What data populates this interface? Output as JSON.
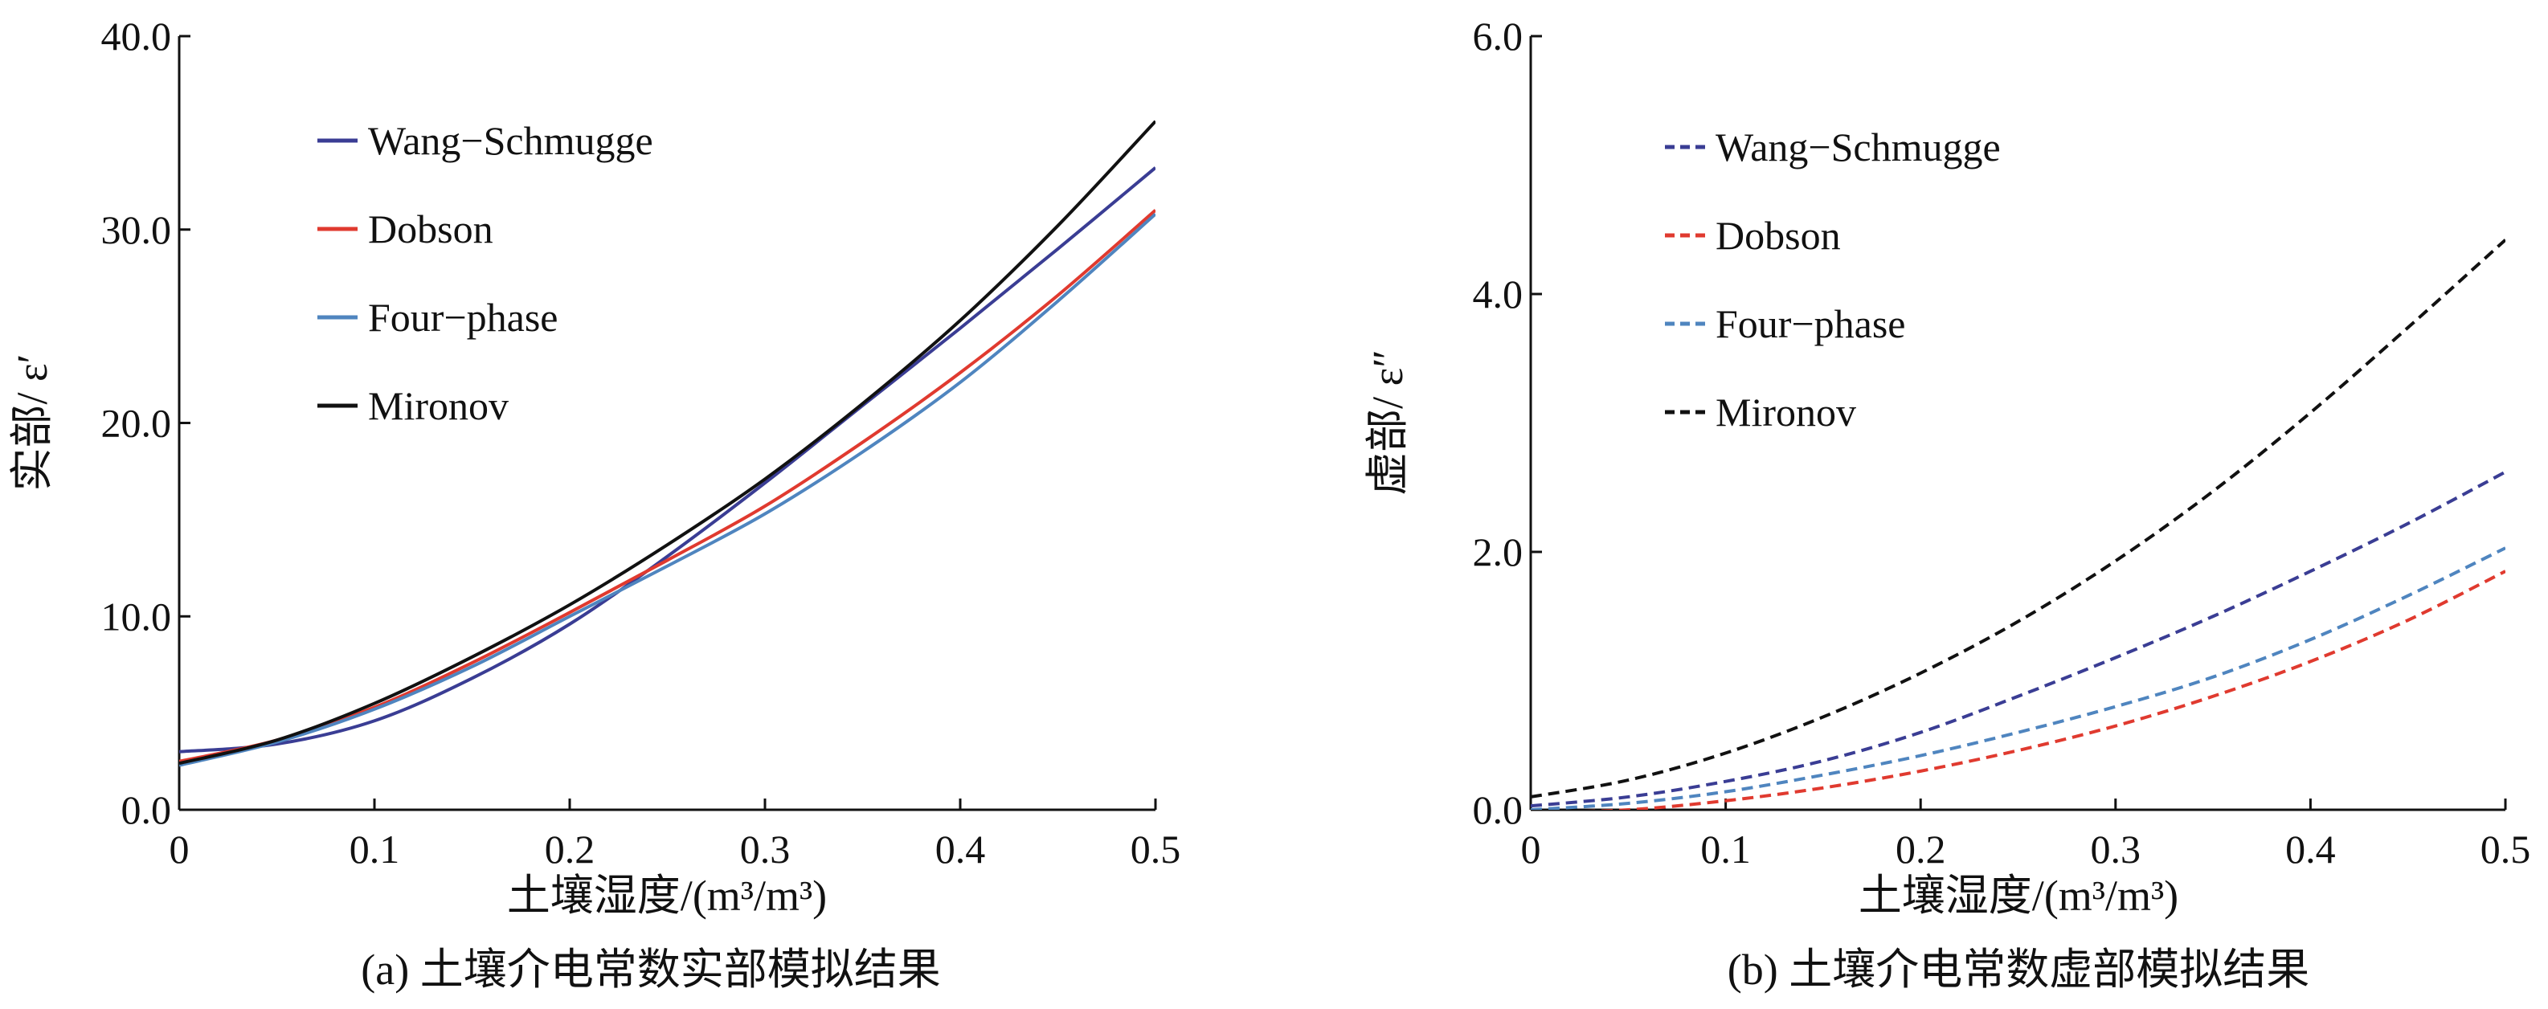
{
  "chart_data": [
    {
      "type": "line",
      "title": "",
      "caption": "(a) 土壤介电常数实部模拟结果",
      "xlabel": "土壤湿度/(m³/m³)",
      "ylabel": "实部/ ε′",
      "xlim": [
        0,
        0.5
      ],
      "ylim": [
        0,
        40
      ],
      "xticks": [
        0,
        0.1,
        0.2,
        0.3,
        0.4,
        0.5
      ],
      "xtick_labels": [
        "0",
        "0.1",
        "0.2",
        "0.3",
        "0.4",
        "0.5"
      ],
      "yticks": [
        0,
        10,
        20,
        30,
        40
      ],
      "ytick_labels": [
        "0.0",
        "10.0",
        "20.0",
        "30.0",
        "40.0"
      ],
      "grid": false,
      "legend_position": "top-left",
      "x": [
        0,
        0.05,
        0.1,
        0.15,
        0.2,
        0.25,
        0.3,
        0.35,
        0.4,
        0.45,
        0.5
      ],
      "series": [
        {
          "name": "Wang−Schmugge",
          "color": "#3a3d94",
          "dash": "solid",
          "values": [
            3.0,
            3.4,
            4.6,
            6.8,
            9.6,
            13.1,
            16.9,
            20.9,
            24.9,
            29.0,
            33.2
          ]
        },
        {
          "name": "Dobson",
          "color": "#e03a2f",
          "dash": "solid",
          "values": [
            2.5,
            3.6,
            5.3,
            7.6,
            10.2,
            12.9,
            15.7,
            19.0,
            22.6,
            26.6,
            31.0
          ]
        },
        {
          "name": "Four−phase",
          "color": "#4f85bf",
          "dash": "solid",
          "values": [
            2.3,
            3.5,
            5.2,
            7.4,
            10.0,
            12.6,
            15.3,
            18.5,
            22.1,
            26.3,
            30.8
          ]
        },
        {
          "name": "Mironov",
          "color": "#111111",
          "dash": "solid",
          "values": [
            2.4,
            3.6,
            5.5,
            7.9,
            10.6,
            13.7,
            17.1,
            21.0,
            25.3,
            30.2,
            35.6
          ]
        }
      ]
    },
    {
      "type": "line",
      "title": "",
      "caption": "(b) 土壤介电常数虚部模拟结果",
      "xlabel": "土壤湿度/(m³/m³)",
      "ylabel": "虚部/ ε″",
      "xlim": [
        0,
        0.5
      ],
      "ylim": [
        0,
        6
      ],
      "xticks": [
        0,
        0.1,
        0.2,
        0.3,
        0.4,
        0.5
      ],
      "xtick_labels": [
        "0",
        "0.1",
        "0.2",
        "0.3",
        "0.4",
        "0.5"
      ],
      "yticks": [
        0,
        2,
        4,
        6
      ],
      "ytick_labels": [
        "0.0",
        "2.0",
        "4.0",
        "6.0"
      ],
      "grid": false,
      "legend_position": "top-left",
      "x": [
        0,
        0.05,
        0.1,
        0.15,
        0.2,
        0.25,
        0.3,
        0.35,
        0.4,
        0.45,
        0.5
      ],
      "series": [
        {
          "name": "Wang−Schmugge",
          "color": "#3a3d94",
          "dash": "dashed",
          "values": [
            0.03,
            0.1,
            0.22,
            0.38,
            0.6,
            0.88,
            1.18,
            1.5,
            1.85,
            2.22,
            2.62
          ]
        },
        {
          "name": "Dobson",
          "color": "#e03a2f",
          "dash": "dashed",
          "values": [
            -0.02,
            0.0,
            0.07,
            0.17,
            0.3,
            0.46,
            0.65,
            0.88,
            1.15,
            1.47,
            1.85
          ]
        },
        {
          "name": "Four−phase",
          "color": "#4f85bf",
          "dash": "dashed",
          "values": [
            0.0,
            0.05,
            0.14,
            0.27,
            0.42,
            0.6,
            0.8,
            1.03,
            1.32,
            1.66,
            2.03
          ]
        },
        {
          "name": "Mironov",
          "color": "#111111",
          "dash": "dashed",
          "values": [
            0.1,
            0.23,
            0.44,
            0.72,
            1.06,
            1.46,
            1.93,
            2.47,
            3.08,
            3.74,
            4.42
          ]
        }
      ]
    }
  ]
}
